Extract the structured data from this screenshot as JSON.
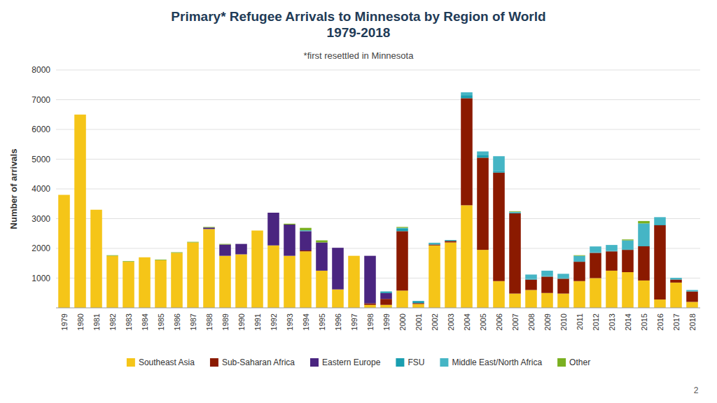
{
  "chart_data": {
    "type": "bar",
    "stacked": true,
    "title": "Primary* Refugee Arrivals to Minnesota by Region of World\n1979-2018",
    "subtitle": "*first resettled in Minnesota",
    "y_label": "Number of arrivals",
    "annotations": [
      "2"
    ],
    "categories": [
      "1979",
      "1980",
      "1981",
      "1982",
      "1983",
      "1984",
      "1985",
      "1986",
      "1987",
      "1988",
      "1989",
      "1990",
      "1991",
      "1992",
      "1993",
      "1994",
      "1995",
      "1996",
      "1997",
      "1998",
      "1999",
      "2000",
      "2001",
      "2002",
      "2003",
      "2004",
      "2005",
      "2006",
      "2007",
      "2008",
      "2009",
      "2010",
      "2011",
      "2012",
      "2013",
      "2014",
      "2015",
      "2016",
      "2017",
      "2018"
    ],
    "series": [
      {
        "name": "Southeast Asia",
        "color": "#f5c518",
        "values": [
          3800,
          6500,
          3300,
          1750,
          1550,
          1700,
          1600,
          1850,
          2200,
          2650,
          1750,
          1800,
          2600,
          2100,
          1750,
          1900,
          1250,
          620,
          1750,
          100,
          100,
          580,
          130,
          2100,
          2200,
          3450,
          1950,
          900,
          480,
          600,
          500,
          480,
          900,
          1000,
          1250,
          1200,
          920,
          280,
          850,
          200
        ]
      },
      {
        "name": "Sub-Saharan Africa",
        "color": "#8b1a00",
        "values": [
          0,
          0,
          0,
          0,
          0,
          0,
          0,
          0,
          0,
          0,
          0,
          0,
          0,
          0,
          0,
          30,
          0,
          0,
          0,
          50,
          200,
          2000,
          30,
          30,
          50,
          3600,
          3100,
          3650,
          2700,
          350,
          550,
          500,
          650,
          850,
          650,
          750,
          1150,
          2500,
          100,
          350
        ]
      },
      {
        "name": "Eastern Europe",
        "color": "#4a2580",
        "values": [
          0,
          0,
          0,
          0,
          0,
          0,
          0,
          0,
          0,
          50,
          380,
          350,
          0,
          1100,
          1050,
          650,
          950,
          1400,
          0,
          1600,
          200,
          0,
          0,
          0,
          0,
          0,
          0,
          0,
          0,
          0,
          0,
          0,
          0,
          0,
          0,
          0,
          0,
          0,
          0,
          0
        ]
      },
      {
        "name": "FSU",
        "color": "#1a9eb0",
        "values": [
          0,
          0,
          0,
          0,
          0,
          0,
          0,
          0,
          0,
          0,
          0,
          0,
          0,
          0,
          0,
          0,
          0,
          0,
          0,
          0,
          50,
          80,
          70,
          30,
          30,
          100,
          80,
          50,
          30,
          20,
          20,
          15,
          20,
          15,
          15,
          20,
          20,
          20,
          10,
          10
        ]
      },
      {
        "name": "Middle East/North Africa",
        "color": "#45b5c5",
        "values": [
          0,
          0,
          0,
          0,
          0,
          0,
          0,
          0,
          0,
          0,
          0,
          0,
          0,
          0,
          0,
          30,
          0,
          0,
          0,
          0,
          0,
          30,
          0,
          30,
          0,
          100,
          130,
          500,
          20,
          150,
          180,
          150,
          180,
          200,
          200,
          300,
          750,
          250,
          50,
          40
        ]
      },
      {
        "name": "Other",
        "color": "#7ab020",
        "values": [
          0,
          0,
          0,
          20,
          20,
          0,
          20,
          20,
          20,
          20,
          20,
          0,
          0,
          0,
          30,
          80,
          70,
          0,
          0,
          0,
          0,
          30,
          0,
          0,
          0,
          0,
          0,
          0,
          20,
          0,
          0,
          0,
          20,
          0,
          0,
          30,
          80,
          0,
          0,
          0
        ]
      }
    ],
    "ylim": [
      0,
      8000
    ],
    "yticks": [
      1000,
      2000,
      3000,
      4000,
      5000,
      6000,
      7000,
      8000
    ],
    "grid": true,
    "legend": "bottom"
  }
}
